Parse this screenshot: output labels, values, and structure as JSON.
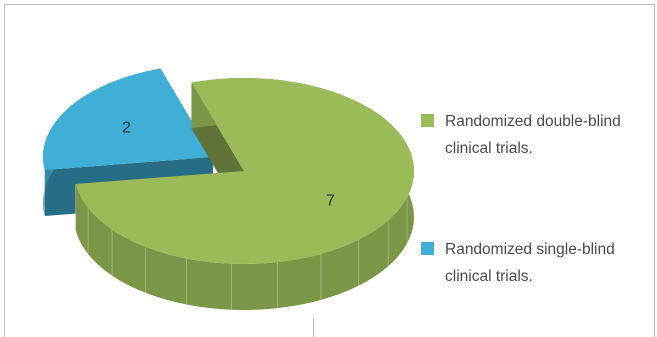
{
  "chart_data": {
    "type": "pie",
    "title": "",
    "slices": [
      {
        "label": "Randomized double-blind clinical trials.",
        "value": 7,
        "color": "#9bbb59"
      },
      {
        "label": "Randomized single-blind clinical trials.",
        "value": 2,
        "color": "#3fafd7"
      }
    ],
    "legend_position": "right",
    "style": "3d-exploded"
  },
  "legend": [
    {
      "label": "Randomized double-blind clinical trials.",
      "color": "#9bbb59"
    },
    {
      "label": "Randomized single-blind clinical trials.",
      "color": "#3fafd7"
    }
  ]
}
